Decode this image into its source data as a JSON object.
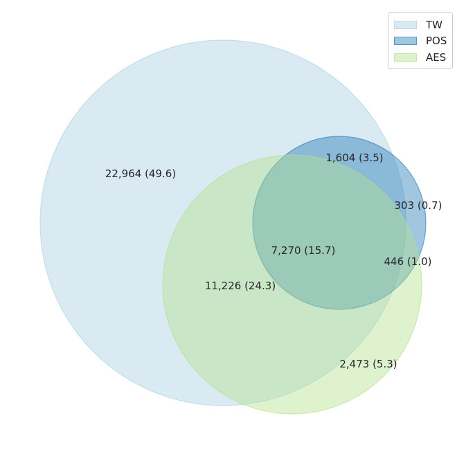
{
  "chart_data": {
    "type": "venn",
    "sets": [
      {
        "name": "TW",
        "color": "#a6cee3",
        "fill_opacity": 0.42
      },
      {
        "name": "POS",
        "color": "#1f78b4",
        "fill_opacity": 0.42
      },
      {
        "name": "AES",
        "color": "#b2df8a",
        "fill_opacity": 0.42
      }
    ],
    "regions": [
      {
        "sets": [
          "TW"
        ],
        "count": "22,964",
        "percent": "49.6",
        "label": "22,964 (49.6)"
      },
      {
        "sets": [
          "TW",
          "POS"
        ],
        "count": "1,604",
        "percent": "3.5",
        "label": "1,604 (3.5)"
      },
      {
        "sets": [
          "POS"
        ],
        "count": "303",
        "percent": "0.7",
        "label": "303 (0.7)"
      },
      {
        "sets": [
          "TW",
          "POS",
          "AES"
        ],
        "count": "7,270",
        "percent": "15.7",
        "label": "7,270 (15.7)"
      },
      {
        "sets": [
          "POS",
          "AES"
        ],
        "count": "446",
        "percent": "1.0",
        "label": "446 (1.0)"
      },
      {
        "sets": [
          "TW",
          "AES"
        ],
        "count": "11,226",
        "percent": "24.3",
        "label": "11,226 (24.3)"
      },
      {
        "sets": [
          "AES"
        ],
        "count": "2,473",
        "percent": "5.3",
        "label": "2,473 (5.3)"
      }
    ],
    "legend": {
      "placement": "top-right",
      "entries": [
        "TW",
        "POS",
        "AES"
      ]
    },
    "title": ""
  }
}
